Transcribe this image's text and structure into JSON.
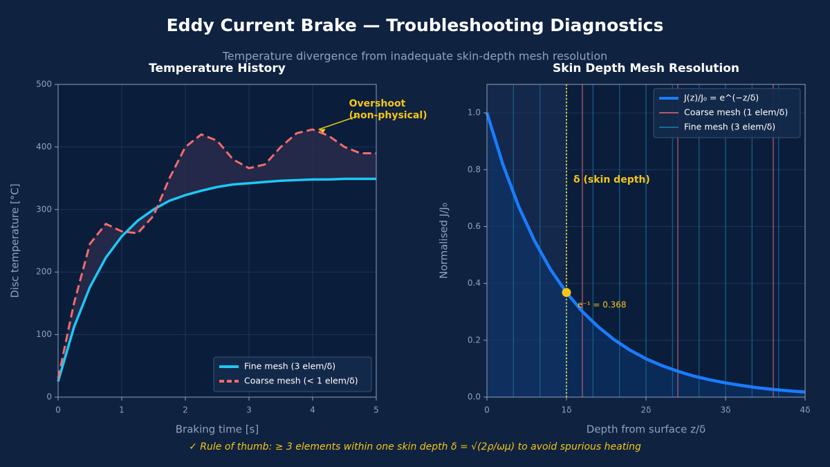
{
  "title": "Eddy Current Brake — Troubleshooting Diagnostics",
  "subtitle": "Temperature divergence from inadequate skin-depth mesh resolution",
  "footnote": "✓ Rule of thumb: ≥ 3 elements within one skin depth δ = √(2ρ/ωμ)  to avoid spurious heating",
  "chart_data": [
    {
      "type": "line",
      "title": "Temperature History",
      "xlabel": "Braking time [s]",
      "ylabel": "Disc temperature [°C]",
      "x": [
        0,
        0.25,
        0.5,
        0.75,
        1,
        1.25,
        1.5,
        1.75,
        2,
        2.25,
        2.5,
        2.75,
        3,
        3.25,
        3.5,
        3.75,
        4,
        4.25,
        4.5,
        4.75,
        5
      ],
      "series": [
        {
          "name": "Fine mesh (3 elem/δ)",
          "color": "#1ec8f5",
          "dash": false,
          "values": [
            25,
            112,
            176,
            223,
            257,
            282,
            300,
            314,
            323,
            330,
            336,
            340,
            342,
            344,
            346,
            347,
            348,
            348,
            349,
            349,
            349
          ]
        },
        {
          "name": "Coarse mesh (< 1 elem/δ)",
          "color": "#f26b6b",
          "dash": true,
          "values": [
            30,
            150,
            245,
            277,
            265,
            262,
            290,
            350,
            400,
            420,
            410,
            380,
            366,
            372,
            400,
            422,
            428,
            418,
            400,
            390,
            390
          ]
        }
      ],
      "annotations": [
        {
          "text": [
            "Overshoot",
            "(non-physical)"
          ],
          "x": 4.05,
          "y": 428,
          "color": "#f5c518"
        }
      ],
      "xlim": [
        0,
        5
      ],
      "xticks": [
        0,
        1,
        2,
        3,
        4,
        5
      ],
      "ylim": [
        0,
        500
      ],
      "yticks": [
        0,
        100,
        200,
        300,
        400,
        500
      ],
      "grid": true,
      "legend": "lower right"
    },
    {
      "type": "line",
      "title": "Skin Depth Mesh Resolution",
      "xlabel": "Depth from surface z/δ",
      "ylabel": "Normalised J/J₀",
      "x": [
        0,
        0.2,
        0.4,
        0.6,
        0.8,
        1,
        1.2,
        1.4,
        1.6,
        1.8,
        2,
        2.2,
        2.4,
        2.6,
        2.8,
        3,
        3.2,
        3.4,
        3.6,
        3.8,
        4
      ],
      "series": [
        {
          "name": "J(z)/J₀ = e^(−z/δ)",
          "color": "#1a7cff",
          "dash": false,
          "values": [
            1,
            0.819,
            0.67,
            0.549,
            0.449,
            0.368,
            0.301,
            0.247,
            0.202,
            0.165,
            0.135,
            0.111,
            0.091,
            0.074,
            0.061,
            0.05,
            0.041,
            0.033,
            0.027,
            0.022,
            0.018
          ]
        }
      ],
      "mesh_lines": [
        {
          "name": "Coarse mesh (1 elem/δ)",
          "color": "#b85a6b",
          "x": [
            1.2,
            2.4,
            3.6
          ]
        },
        {
          "name": "Fine mesh (3 elem/δ)",
          "color": "#1c6a98",
          "x": [
            0.333,
            0.667,
            1,
            1.333,
            1.667,
            2,
            2.333,
            2.667,
            3,
            3.333,
            3.667
          ]
        }
      ],
      "annotations": [
        {
          "text": "δ (skin depth)",
          "x": 1,
          "color": "#f5c518"
        },
        {
          "text": "e⁻¹ = 0.368",
          "x": 1,
          "y": 0.368,
          "color": "#f5c518"
        }
      ],
      "xlim": [
        0,
        4
      ],
      "xticks": [
        0,
        {
          "value": 1,
          "label": "1δ"
        },
        {
          "value": 2,
          "label": "2δ"
        },
        {
          "value": 3,
          "label": "3δ"
        },
        {
          "value": 4,
          "label": "4δ"
        }
      ],
      "ylim": [
        0,
        1.1
      ],
      "yticks": [
        {
          "value": 0,
          "label": "0.0"
        },
        0.2,
        0.4,
        0.6,
        0.8,
        {
          "value": 1,
          "label": "1.0"
        }
      ],
      "grid": true,
      "legend": "upper right"
    }
  ]
}
